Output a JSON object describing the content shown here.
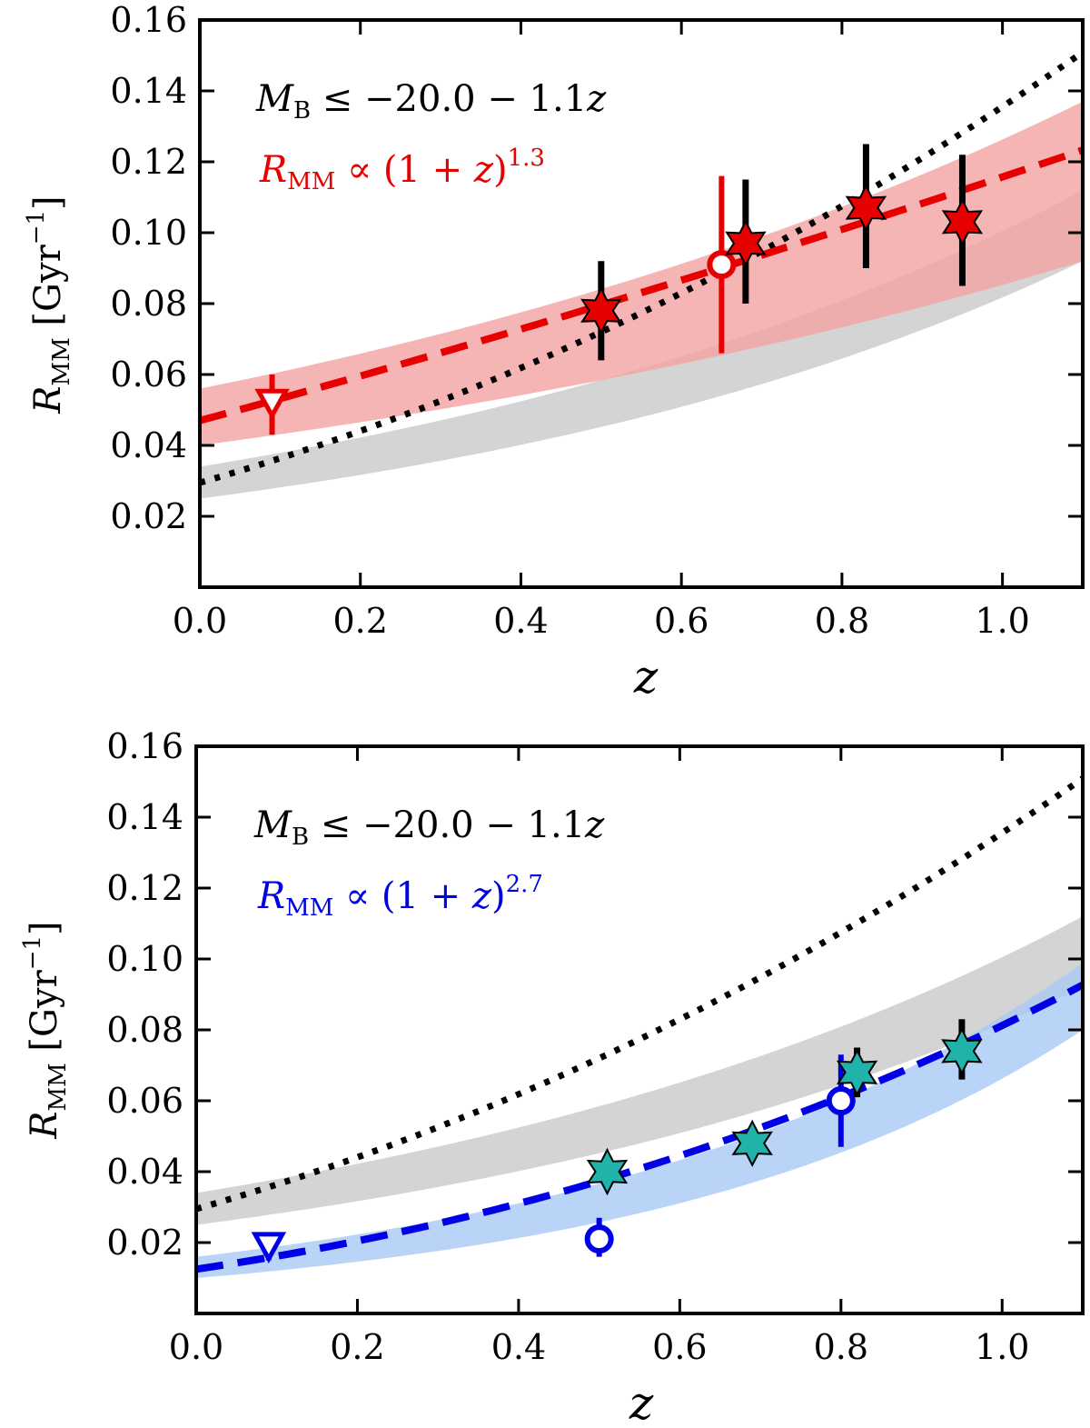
{
  "chart_data": [
    {
      "type": "scatter",
      "xlabel": "z",
      "ylabel": "R_MM [Gyr^-1]",
      "xlim": [
        0.0,
        1.1
      ],
      "ylim": [
        0.0,
        0.16
      ],
      "xticks": [
        "0.0",
        "0.2",
        "0.4",
        "0.6",
        "0.8",
        "1.0"
      ],
      "yticks": [
        "0.02",
        "0.04",
        "0.06",
        "0.08",
        "0.10",
        "0.12",
        "0.14",
        "0.16"
      ],
      "grid": false,
      "annotation_selection": "M_B ≤ −20.0 − 1.1z",
      "annotation_fit": "R_MM ∝ (1 + z)^1.3",
      "fit_exponent": "1.3",
      "accent_color": "#e60000",
      "band_color": "#f4a3a3",
      "model": {
        "a": 0.047,
        "b": 1.3,
        "band_lo": [
          0.04,
          0.092
        ],
        "band_hi": [
          0.056,
          0.137
        ]
      },
      "reference": {
        "a": 0.0295,
        "b": 2.2,
        "band_lo": [
          0.025,
          0.092
        ],
        "band_hi": [
          0.034,
          0.112
        ]
      },
      "stars": [
        {
          "x": 0.5,
          "y": 0.078,
          "ylo": 0.064,
          "yhi": 0.092,
          "color": "#e60000"
        },
        {
          "x": 0.68,
          "y": 0.097,
          "ylo": 0.08,
          "yhi": 0.115,
          "color": "#e60000"
        },
        {
          "x": 0.83,
          "y": 0.107,
          "ylo": 0.09,
          "yhi": 0.125,
          "color": "#e60000"
        },
        {
          "x": 0.95,
          "y": 0.103,
          "ylo": 0.085,
          "yhi": 0.122,
          "color": "#e60000"
        }
      ],
      "circle": {
        "x": 0.65,
        "y": 0.091,
        "ylo": 0.066,
        "yhi": 0.116
      },
      "triangle": {
        "x": 0.09,
        "y": 0.052,
        "ylo": 0.043,
        "yhi": 0.06
      }
    },
    {
      "type": "scatter",
      "xlabel": "z",
      "ylabel": "R_MM [Gyr^-1]",
      "xlim": [
        0.0,
        1.1
      ],
      "ylim": [
        0.0,
        0.16
      ],
      "xticks": [
        "0.0",
        "0.2",
        "0.4",
        "0.6",
        "0.8",
        "1.0"
      ],
      "yticks": [
        "0.02",
        "0.04",
        "0.06",
        "0.08",
        "0.10",
        "0.12",
        "0.14",
        "0.16"
      ],
      "grid": false,
      "annotation_selection": "M_B ≤ −20.0 − 1.1z",
      "annotation_fit": "R_MM ∝ (1 + z)^2.7",
      "fit_exponent": "2.7",
      "accent_color": "#0000e6",
      "band_color": "#a9c9f5",
      "model": {
        "a": 0.0125,
        "b": 2.7,
        "band_lo": [
          0.01,
          0.08
        ],
        "band_hi": [
          0.016,
          0.099
        ]
      },
      "reference": {
        "a": 0.0295,
        "b": 2.2,
        "band_lo": [
          0.025,
          0.092
        ],
        "band_hi": [
          0.034,
          0.112
        ]
      },
      "stars": [
        {
          "x": 0.51,
          "y": 0.04,
          "ylo": 0.036,
          "yhi": 0.044,
          "color": "#1fb3aa"
        },
        {
          "x": 0.69,
          "y": 0.048,
          "ylo": 0.043,
          "yhi": 0.052,
          "color": "#1fb3aa"
        },
        {
          "x": 0.82,
          "y": 0.068,
          "ylo": 0.061,
          "yhi": 0.075,
          "color": "#1fb3aa"
        },
        {
          "x": 0.95,
          "y": 0.074,
          "ylo": 0.066,
          "yhi": 0.083,
          "color": "#1fb3aa"
        }
      ],
      "circle_points": [
        {
          "x": 0.8,
          "y": 0.06,
          "ylo": 0.047,
          "yhi": 0.073
        },
        {
          "x": 0.5,
          "y": 0.021,
          "ylo": 0.016,
          "yhi": 0.027
        }
      ],
      "triangle": {
        "x": 0.09,
        "y": 0.019,
        "ylo": 0.015,
        "yhi": 0.021
      }
    }
  ]
}
